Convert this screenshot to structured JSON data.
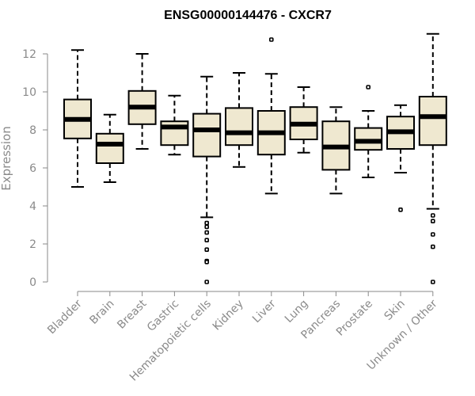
{
  "chart_data": {
    "type": "boxplot",
    "title": "ENSG00000144476 - CXCR7",
    "xlabel": "",
    "ylabel": "Expression",
    "ylim": [
      0,
      13
    ],
    "yticks": [
      0,
      2,
      4,
      6,
      8,
      10,
      12
    ],
    "grid": false,
    "legend": "none",
    "box_fill": "#efe8d0",
    "categories": [
      "Bladder",
      "Brain",
      "Breast",
      "Gastric",
      "Hematopoietic cells",
      "Kidney",
      "Liver",
      "Lung",
      "Pancreas",
      "Prostate",
      "Skin",
      "Unknown / Other"
    ],
    "boxes": [
      {
        "min": 5.0,
        "q1": 7.55,
        "median": 8.55,
        "q3": 9.6,
        "max": 12.2,
        "outliers": []
      },
      {
        "min": 5.25,
        "q1": 6.25,
        "median": 7.25,
        "q3": 7.8,
        "max": 8.8,
        "outliers": []
      },
      {
        "min": 7.0,
        "q1": 8.3,
        "median": 9.2,
        "q3": 10.05,
        "max": 12.0,
        "outliers": []
      },
      {
        "min": 6.7,
        "q1": 7.2,
        "median": 8.15,
        "q3": 8.45,
        "max": 9.8,
        "outliers": []
      },
      {
        "min": 3.4,
        "q1": 6.6,
        "median": 8.0,
        "q3": 8.85,
        "max": 10.8,
        "outliers": [
          3.1,
          2.9,
          2.6,
          2.2,
          1.7,
          1.1,
          1.05,
          0.0
        ]
      },
      {
        "min": 6.05,
        "q1": 7.2,
        "median": 7.85,
        "q3": 9.15,
        "max": 11.0,
        "outliers": []
      },
      {
        "min": 4.65,
        "q1": 6.7,
        "median": 7.85,
        "q3": 9.0,
        "max": 10.95,
        "outliers": [
          12.75
        ]
      },
      {
        "min": 6.8,
        "q1": 7.5,
        "median": 8.3,
        "q3": 9.2,
        "max": 10.25,
        "outliers": []
      },
      {
        "min": 4.65,
        "q1": 5.9,
        "median": 7.1,
        "q3": 8.45,
        "max": 9.2,
        "outliers": []
      },
      {
        "min": 5.5,
        "q1": 6.95,
        "median": 7.4,
        "q3": 8.1,
        "max": 9.0,
        "outliers": [
          10.25
        ]
      },
      {
        "min": 5.75,
        "q1": 7.0,
        "median": 7.9,
        "q3": 8.7,
        "max": 9.3,
        "outliers": [
          3.8
        ]
      },
      {
        "min": 3.85,
        "q1": 7.2,
        "median": 8.7,
        "q3": 9.75,
        "max": 13.05,
        "outliers": [
          3.5,
          3.2,
          2.5,
          1.85,
          0.0
        ]
      }
    ]
  }
}
